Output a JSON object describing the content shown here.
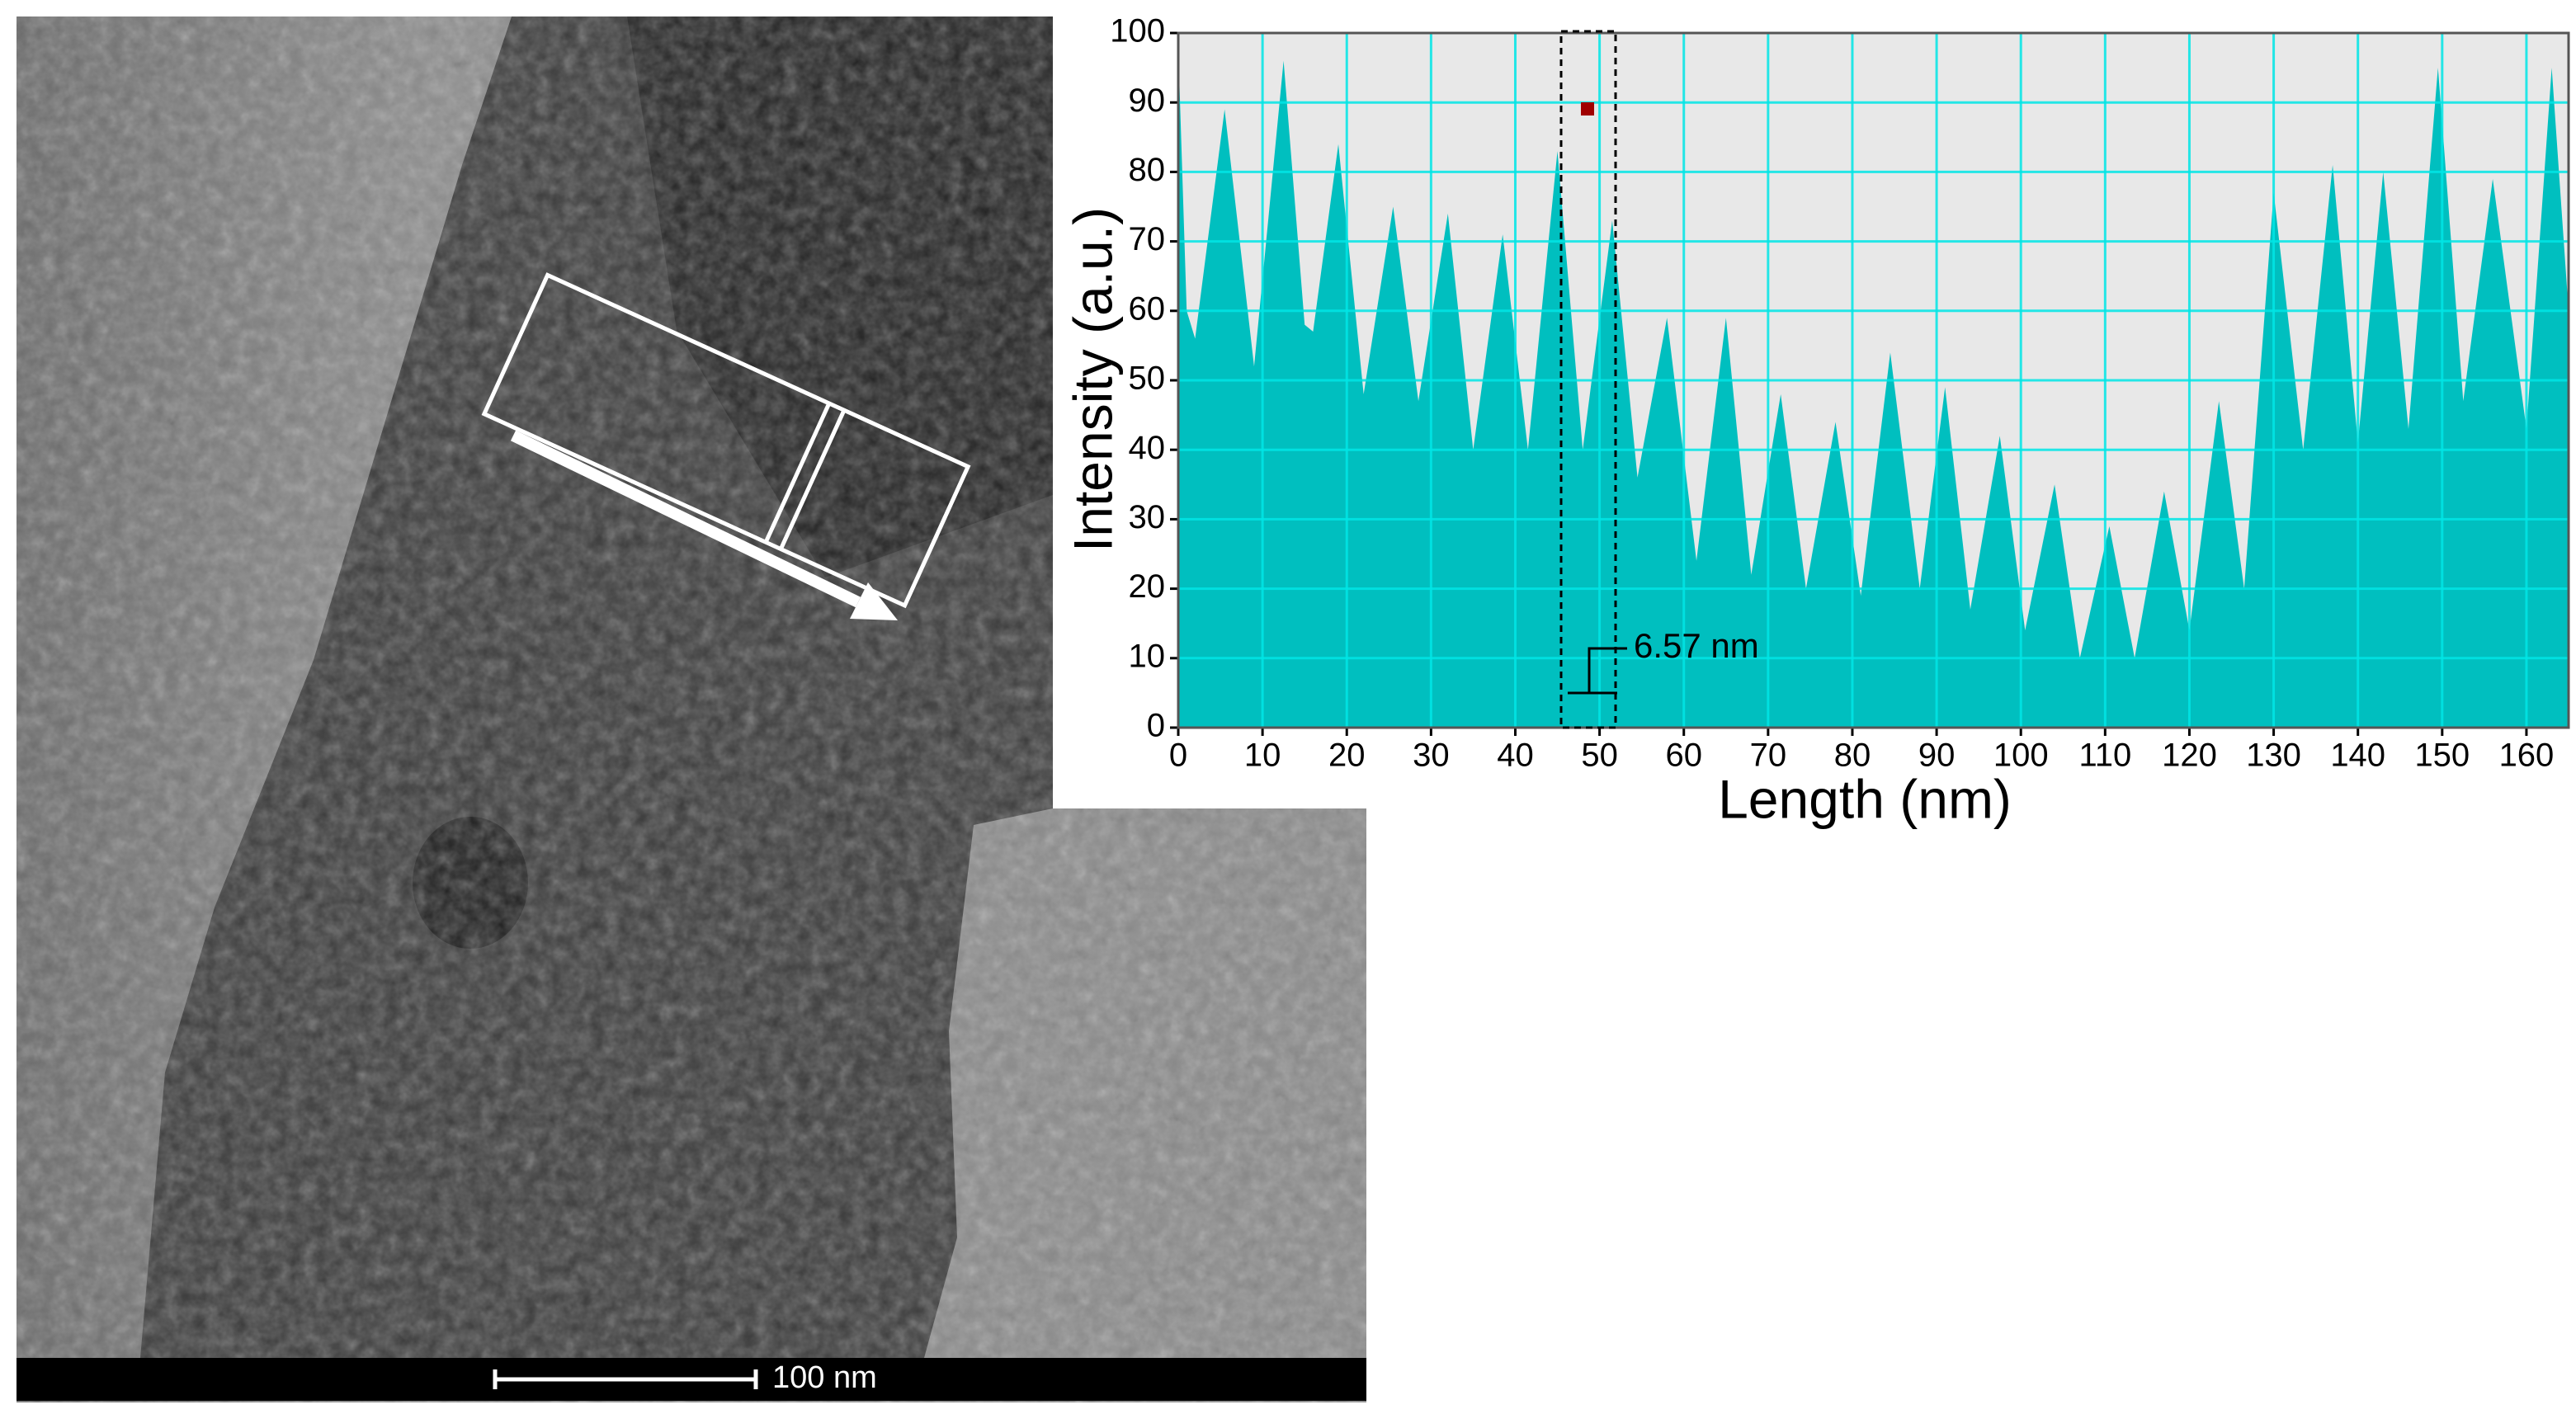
{
  "image": {
    "scale_bar": "100 nm"
  },
  "chart_data": {
    "type": "area",
    "xlabel": "Length (nm)",
    "ylabel": "Intensity (a.u.)",
    "annotation": "6.57 nm",
    "color": "#00bfbf",
    "grid": true,
    "xlim": [
      0,
      165
    ],
    "ylim": [
      0,
      100
    ],
    "xticks": [
      0,
      10,
      20,
      30,
      40,
      50,
      60,
      70,
      80,
      90,
      100,
      110,
      120,
      130,
      140,
      150,
      160
    ],
    "yticks": [
      0,
      10,
      20,
      30,
      40,
      50,
      60,
      70,
      80,
      90,
      100
    ],
    "x": [
      0,
      1,
      2,
      5.5,
      9,
      12.5,
      15,
      16,
      19,
      22,
      25.5,
      28.5,
      32,
      35,
      38.5,
      41.5,
      45,
      48,
      51.5,
      54.5,
      58,
      61.5,
      65,
      68,
      71.5,
      74.5,
      78,
      81,
      84.5,
      88,
      91,
      94,
      97.5,
      100.5,
      104,
      107,
      110.5,
      113.5,
      117,
      120,
      123.5,
      126.5,
      130,
      133.5,
      137,
      140,
      143,
      146,
      149.5,
      152.5,
      156,
      160,
      163,
      165
    ],
    "values": [
      98,
      60,
      56,
      89,
      52,
      96,
      58,
      57,
      84,
      48,
      75,
      47,
      74,
      40,
      71,
      40,
      83,
      40,
      73,
      36,
      59,
      24,
      59,
      22,
      48,
      20,
      44,
      19,
      54,
      20,
      49,
      17,
      42,
      14,
      35,
      10,
      29,
      10,
      34,
      14,
      47,
      20,
      77,
      40,
      81,
      41,
      80,
      43,
      95,
      47,
      79,
      43,
      95,
      60
    ]
  }
}
